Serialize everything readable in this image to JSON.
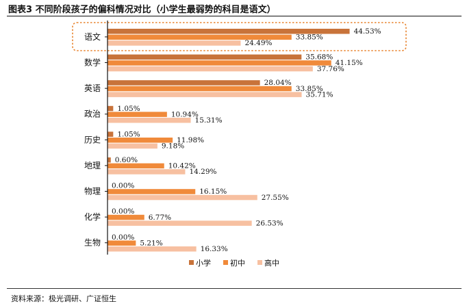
{
  "figure": {
    "title": "图表3 不同阶段孩子的偏科情况对比（小学生最弱势的科目是语文）",
    "source": "资料来源：极光调研、广证恒生"
  },
  "colors": {
    "小学": "#c8733a",
    "初中": "#f08a3a",
    "高中": "#f7c0a1",
    "highlight": "#e8842f"
  },
  "chart_data": {
    "type": "bar",
    "orientation": "horizontal",
    "categories": [
      "语文",
      "数学",
      "英语",
      "政治",
      "历史",
      "地理",
      "物理",
      "化学",
      "生物"
    ],
    "series": [
      {
        "name": "小学",
        "values": [
          44.53,
          35.68,
          28.04,
          1.05,
          1.05,
          0.6,
          0.0,
          0.0,
          0.0
        ]
      },
      {
        "name": "初中",
        "values": [
          33.85,
          41.15,
          33.85,
          10.94,
          11.98,
          10.42,
          16.15,
          6.77,
          5.21
        ]
      },
      {
        "name": "高中",
        "values": [
          24.49,
          37.76,
          35.71,
          15.31,
          9.18,
          14.29,
          27.55,
          26.53,
          16.33
        ]
      }
    ],
    "xlim": [
      0,
      50
    ],
    "value_format": "percent, 2 decimals",
    "highlighted_category": "语文",
    "legend_position": "bottom-center",
    "grid": false
  }
}
